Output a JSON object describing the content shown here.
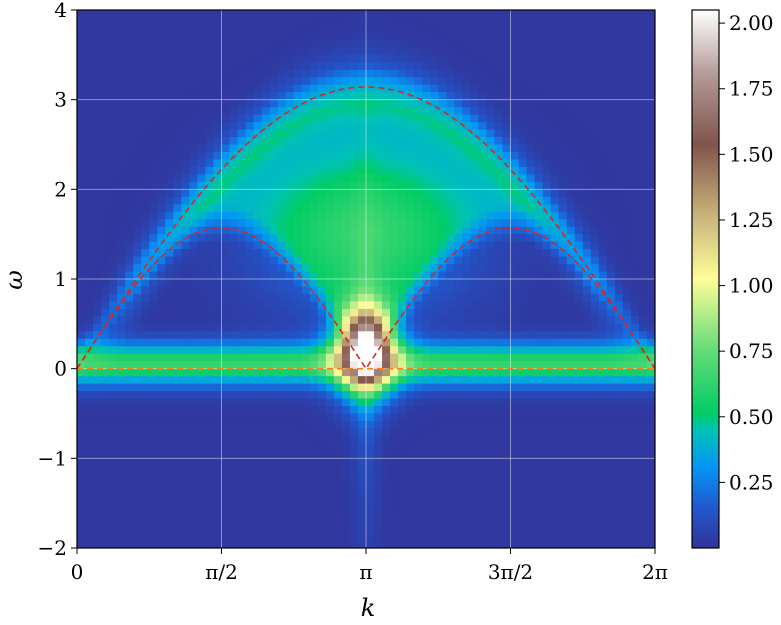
{
  "chart_data": {
    "type": "heatmap",
    "title": "",
    "xlabel": "k",
    "ylabel": "ω",
    "xlim": [
      0,
      6.283185307
    ],
    "ylim": [
      -2,
      4
    ],
    "x_ticks": [
      {
        "value": 0,
        "label": "0"
      },
      {
        "value": 1.5707963,
        "label": "π/2"
      },
      {
        "value": 3.1415927,
        "label": "π"
      },
      {
        "value": 4.712389,
        "label": "3π/2"
      },
      {
        "value": 6.2831853,
        "label": "2π"
      }
    ],
    "y_ticks": [
      {
        "value": -2,
        "label": "−2"
      },
      {
        "value": -1,
        "label": "−1"
      },
      {
        "value": 0,
        "label": "0"
      },
      {
        "value": 1,
        "label": "1"
      },
      {
        "value": 2,
        "label": "2"
      },
      {
        "value": 3,
        "label": "3"
      },
      {
        "value": 4,
        "label": "4"
      }
    ],
    "grid": true,
    "colormap": "terrain",
    "colorbar": {
      "range": [
        0,
        2.05
      ],
      "ticks": [
        {
          "value": 0.25,
          "label": "0.25"
        },
        {
          "value": 0.5,
          "label": "0.50"
        },
        {
          "value": 0.75,
          "label": "0.75"
        },
        {
          "value": 1.0,
          "label": "1.00"
        },
        {
          "value": 1.25,
          "label": "1.25"
        },
        {
          "value": 1.5,
          "label": "1.50"
        },
        {
          "value": 1.75,
          "label": "1.75"
        },
        {
          "value": 2.0,
          "label": "2.00"
        }
      ]
    },
    "overlay_curves": [
      {
        "shape": "upper band ω = π·sin(k/2)",
        "color": "#d62728",
        "style": "dashed",
        "k": [
          0,
          0.785,
          1.571,
          2.356,
          3.142,
          3.927,
          4.712,
          5.498,
          6.283
        ],
        "omega": [
          0,
          1.2,
          2.22,
          2.9,
          3.14,
          2.9,
          2.22,
          1.2,
          0
        ]
      },
      {
        "shape": "lower band ω = (π/2)·|sin k|",
        "color": "#d62728",
        "style": "dashed",
        "k": [
          0,
          0.785,
          1.571,
          2.356,
          3.142,
          3.927,
          4.712,
          5.498,
          6.283
        ],
        "omega": [
          0,
          1.11,
          1.57,
          1.11,
          0,
          1.11,
          1.57,
          1.11,
          0
        ]
      },
      {
        "shape": "zero line ω = 0",
        "color": "#ff7f0e",
        "style": "dashed",
        "k": [
          0,
          6.283
        ],
        "omega": [
          0,
          0
        ]
      }
    ],
    "intensity_features": [
      {
        "feature": "flat band near ω = 0",
        "k_range": [
          0,
          6.283
        ],
        "omega_range": [
          -0.3,
          0.3
        ],
        "intensity": 0.6
      },
      {
        "feature": "peak near k = π, ω ≈ 0.2",
        "k": 3.1416,
        "omega": 0.2,
        "intensity": 2.05
      },
      {
        "feature": "continuum between bands",
        "k_range": [
          1.2,
          5.1
        ],
        "omega_range": [
          1.0,
          2.0
        ],
        "intensity": 0.55
      }
    ]
  }
}
